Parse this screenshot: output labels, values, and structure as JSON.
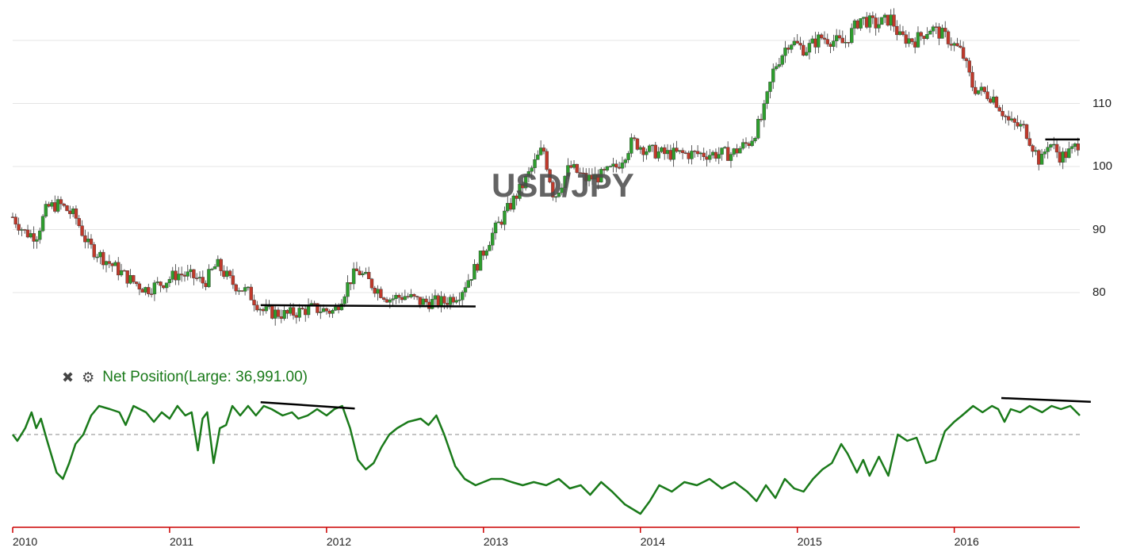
{
  "watermark": "USD/JPY",
  "indicator": {
    "label": "Net Position(Large: 36,991.00)",
    "close_icon": "close-icon",
    "settings_icon": "gear-icon",
    "color": "#1a7a1a"
  },
  "colors": {
    "up": "#2e9e2e",
    "down": "#c0392b",
    "grid": "#e4e4e4",
    "axis": "#cc0000",
    "zero": "#888888"
  },
  "chart_data": [
    {
      "type": "candlestick",
      "title": "USD/JPY",
      "y_ticks": [
        "80",
        "90",
        "100",
        "110"
      ],
      "ylim": [
        70,
        128
      ],
      "x_ticks": [
        "2010",
        "2011",
        "2012",
        "2013",
        "2014",
        "2015",
        "2016"
      ],
      "xlim": [
        2010.0,
        2016.8
      ],
      "weekly_close_path": [
        [
          2010.0,
          92.0
        ],
        [
          2010.08,
          89.5
        ],
        [
          2010.15,
          89.0
        ],
        [
          2010.22,
          93.5
        ],
        [
          2010.3,
          94.0
        ],
        [
          2010.4,
          92.0
        ],
        [
          2010.48,
          87.5
        ],
        [
          2010.6,
          85.0
        ],
        [
          2010.75,
          82.0
        ],
        [
          2010.85,
          80.5
        ],
        [
          2010.95,
          81.5
        ],
        [
          2011.05,
          83.0
        ],
        [
          2011.15,
          82.5
        ],
        [
          2011.22,
          81.5
        ],
        [
          2011.3,
          84.5
        ],
        [
          2011.4,
          81.5
        ],
        [
          2011.5,
          80.0
        ],
        [
          2011.6,
          77.0
        ],
        [
          2011.75,
          76.5
        ],
        [
          2011.9,
          77.5
        ],
        [
          2012.05,
          77.0
        ],
        [
          2012.15,
          82.0
        ],
        [
          2012.2,
          83.5
        ],
        [
          2012.3,
          81.0
        ],
        [
          2012.4,
          79.0
        ],
        [
          2012.5,
          79.5
        ],
        [
          2012.6,
          78.5
        ],
        [
          2012.75,
          78.5
        ],
        [
          2012.85,
          80.0
        ],
        [
          2012.95,
          84.0
        ],
        [
          2013.05,
          89.0
        ],
        [
          2013.15,
          93.0
        ],
        [
          2013.25,
          97.0
        ],
        [
          2013.38,
          103.0
        ],
        [
          2013.45,
          95.0
        ],
        [
          2013.55,
          100.0
        ],
        [
          2013.65,
          98.0
        ],
        [
          2013.75,
          98.5
        ],
        [
          2013.85,
          100.0
        ],
        [
          2013.95,
          104.0
        ],
        [
          2014.05,
          102.5
        ],
        [
          2014.15,
          102.0
        ],
        [
          2014.3,
          102.0
        ],
        [
          2014.45,
          102.0
        ],
        [
          2014.58,
          102.0
        ],
        [
          2014.7,
          104.0
        ],
        [
          2014.78,
          108.0
        ],
        [
          2014.85,
          115.5
        ],
        [
          2014.95,
          120.0
        ],
        [
          2015.05,
          118.5
        ],
        [
          2015.15,
          120.5
        ],
        [
          2015.3,
          119.5
        ],
        [
          2015.4,
          123.5
        ],
        [
          2015.5,
          122.5
        ],
        [
          2015.6,
          123.5
        ],
        [
          2015.65,
          120.5
        ],
        [
          2015.75,
          120.0
        ],
        [
          2015.85,
          122.0
        ],
        [
          2015.95,
          120.5
        ],
        [
          2016.05,
          118.0
        ],
        [
          2016.12,
          112.5
        ],
        [
          2016.25,
          111.0
        ],
        [
          2016.35,
          107.0
        ],
        [
          2016.45,
          106.0
        ],
        [
          2016.55,
          100.5
        ],
        [
          2016.6,
          104.0
        ],
        [
          2016.68,
          101.5
        ],
        [
          2016.75,
          102.5
        ],
        [
          2016.8,
          104.0
        ]
      ],
      "annotations": [
        {
          "type": "line",
          "from": [
            2011.58,
            78.0
          ],
          "to": [
            2012.95,
            77.8
          ]
        },
        {
          "type": "line",
          "from": [
            2016.58,
            104.3
          ],
          "to": [
            2016.8,
            104.3
          ]
        }
      ]
    },
    {
      "type": "line",
      "series": [
        {
          "name": "Net Position",
          "points": [
            [
              2010.0,
              0.0
            ],
            [
              2010.03,
              -0.2
            ],
            [
              2010.08,
              0.2
            ],
            [
              2010.12,
              0.7
            ],
            [
              2010.15,
              0.2
            ],
            [
              2010.18,
              0.5
            ],
            [
              2010.22,
              -0.2
            ],
            [
              2010.28,
              -1.2
            ],
            [
              2010.32,
              -1.4
            ],
            [
              2010.36,
              -0.9
            ],
            [
              2010.4,
              -0.3
            ],
            [
              2010.45,
              0.0
            ],
            [
              2010.5,
              0.6
            ],
            [
              2010.55,
              0.9
            ],
            [
              2010.62,
              0.8
            ],
            [
              2010.68,
              0.7
            ],
            [
              2010.72,
              0.3
            ],
            [
              2010.77,
              0.9
            ],
            [
              2010.85,
              0.7
            ],
            [
              2010.9,
              0.4
            ],
            [
              2010.95,
              0.7
            ],
            [
              2011.0,
              0.5
            ],
            [
              2011.05,
              0.9
            ],
            [
              2011.1,
              0.6
            ],
            [
              2011.14,
              0.7
            ],
            [
              2011.18,
              -0.5
            ],
            [
              2011.21,
              0.5
            ],
            [
              2011.24,
              0.7
            ],
            [
              2011.28,
              -0.9
            ],
            [
              2011.32,
              0.2
            ],
            [
              2011.36,
              0.3
            ],
            [
              2011.4,
              0.9
            ],
            [
              2011.45,
              0.6
            ],
            [
              2011.5,
              0.9
            ],
            [
              2011.55,
              0.6
            ],
            [
              2011.6,
              0.9
            ],
            [
              2011.65,
              0.8
            ],
            [
              2011.72,
              0.6
            ],
            [
              2011.78,
              0.7
            ],
            [
              2011.82,
              0.5
            ],
            [
              2011.88,
              0.6
            ],
            [
              2011.94,
              0.8
            ],
            [
              2012.0,
              0.6
            ],
            [
              2012.05,
              0.8
            ],
            [
              2012.1,
              0.9
            ],
            [
              2012.15,
              0.2
            ],
            [
              2012.2,
              -0.8
            ],
            [
              2012.25,
              -1.1
            ],
            [
              2012.3,
              -0.9
            ],
            [
              2012.35,
              -0.4
            ],
            [
              2012.4,
              0.0
            ],
            [
              2012.45,
              0.2
            ],
            [
              2012.52,
              0.4
            ],
            [
              2012.6,
              0.5
            ],
            [
              2012.65,
              0.3
            ],
            [
              2012.7,
              0.6
            ],
            [
              2012.75,
              0.0
            ],
            [
              2012.82,
              -1.0
            ],
            [
              2012.88,
              -1.4
            ],
            [
              2012.95,
              -1.6
            ],
            [
              2013.05,
              -1.4
            ],
            [
              2013.12,
              -1.4
            ],
            [
              2013.18,
              -1.5
            ],
            [
              2013.25,
              -1.6
            ],
            [
              2013.32,
              -1.5
            ],
            [
              2013.4,
              -1.6
            ],
            [
              2013.48,
              -1.4
            ],
            [
              2013.55,
              -1.7
            ],
            [
              2013.62,
              -1.6
            ],
            [
              2013.68,
              -1.9
            ],
            [
              2013.75,
              -1.5
            ],
            [
              2013.82,
              -1.8
            ],
            [
              2013.9,
              -2.2
            ],
            [
              2014.0,
              -2.5
            ],
            [
              2014.06,
              -2.1
            ],
            [
              2014.12,
              -1.6
            ],
            [
              2014.2,
              -1.8
            ],
            [
              2014.28,
              -1.5
            ],
            [
              2014.36,
              -1.6
            ],
            [
              2014.44,
              -1.4
            ],
            [
              2014.52,
              -1.7
            ],
            [
              2014.6,
              -1.5
            ],
            [
              2014.68,
              -1.8
            ],
            [
              2014.74,
              -2.1
            ],
            [
              2014.8,
              -1.6
            ],
            [
              2014.86,
              -2.0
            ],
            [
              2014.92,
              -1.4
            ],
            [
              2014.98,
              -1.7
            ],
            [
              2015.04,
              -1.8
            ],
            [
              2015.1,
              -1.4
            ],
            [
              2015.16,
              -1.1
            ],
            [
              2015.22,
              -0.9
            ],
            [
              2015.28,
              -0.3
            ],
            [
              2015.32,
              -0.6
            ],
            [
              2015.38,
              -1.2
            ],
            [
              2015.42,
              -0.8
            ],
            [
              2015.46,
              -1.3
            ],
            [
              2015.52,
              -0.7
            ],
            [
              2015.58,
              -1.3
            ],
            [
              2015.64,
              0.0
            ],
            [
              2015.7,
              -0.2
            ],
            [
              2015.76,
              -0.1
            ],
            [
              2015.82,
              -0.9
            ],
            [
              2015.88,
              -0.8
            ],
            [
              2015.94,
              0.1
            ],
            [
              2016.0,
              0.4
            ],
            [
              2016.05,
              0.6
            ],
            [
              2016.12,
              0.9
            ],
            [
              2016.18,
              0.7
            ],
            [
              2016.24,
              0.9
            ],
            [
              2016.28,
              0.8
            ],
            [
              2016.32,
              0.4
            ],
            [
              2016.36,
              0.8
            ],
            [
              2016.42,
              0.7
            ],
            [
              2016.48,
              0.9
            ],
            [
              2016.56,
              0.7
            ],
            [
              2016.62,
              0.9
            ],
            [
              2016.68,
              0.8
            ],
            [
              2016.74,
              0.9
            ],
            [
              2016.8,
              0.6
            ]
          ]
        }
      ],
      "reference_line": 0,
      "annotations": [
        {
          "type": "line",
          "from": [
            2011.58,
            1.02
          ],
          "to": [
            2012.18,
            0.82
          ]
        },
        {
          "type": "line",
          "from": [
            2016.3,
            1.15
          ],
          "to": [
            2016.87,
            1.03
          ]
        }
      ]
    }
  ]
}
